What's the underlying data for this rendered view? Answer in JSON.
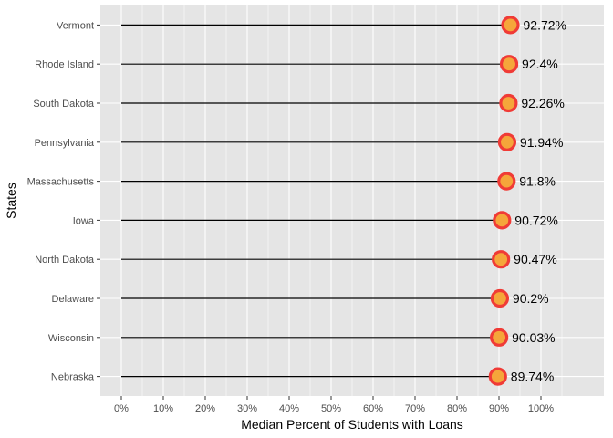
{
  "colors": {
    "panel_background": "#e5e5e5",
    "gridline": "#ffffff",
    "segment": "#000000",
    "point_outline": "#f03b36",
    "point_fill": "#f5a63a",
    "tick_text": "#4d4d4d",
    "axis_title": "#000000"
  },
  "chart_data": {
    "type": "lollipop",
    "orientation": "horizontal",
    "xlabel": "Median Percent of Students with Loans",
    "ylabel": "States",
    "xlim": [
      -0.05,
      1.15
    ],
    "x_ticks": [
      0,
      0.1,
      0.2,
      0.3,
      0.4,
      0.5,
      0.6,
      0.7,
      0.8,
      0.9,
      1.0
    ],
    "x_tick_labels": [
      "0%",
      "10%",
      "20%",
      "30%",
      "40%",
      "50%",
      "60%",
      "70%",
      "80%",
      "90%",
      "100%"
    ],
    "grid": true,
    "legend": "none",
    "segment_start": 0,
    "categories": [
      "Vermont",
      "Rhode Island",
      "South Dakota",
      "Pennsylvania",
      "Massachusetts",
      "Iowa",
      "North Dakota",
      "Delaware",
      "Wisconsin",
      "Nebraska"
    ],
    "values": [
      0.9272,
      0.924,
      0.9226,
      0.9194,
      0.918,
      0.9072,
      0.9047,
      0.902,
      0.9003,
      0.8974
    ],
    "value_labels": [
      "92.72%",
      "92.4%",
      "92.26%",
      "91.94%",
      "91.8%",
      "90.72%",
      "90.47%",
      "90.2%",
      "90.03%",
      "89.74%"
    ]
  }
}
